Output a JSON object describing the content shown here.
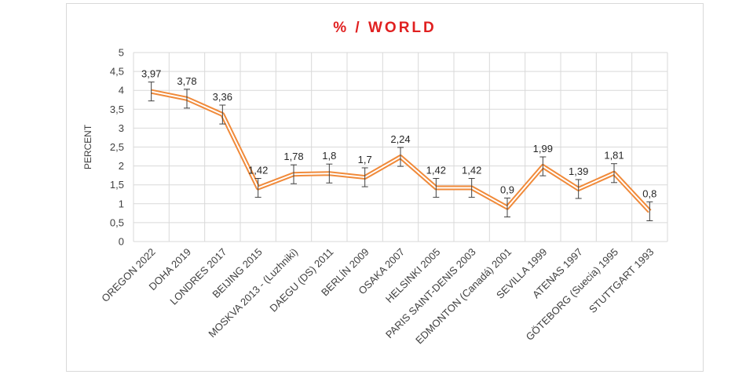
{
  "chart_data": {
    "type": "line",
    "title": "% / WORLD",
    "xlabel": "",
    "ylabel": "PERCENT",
    "ylim": [
      0,
      5
    ],
    "yticks": [
      "0",
      "0,5",
      "1",
      "1,5",
      "2",
      "2,5",
      "3",
      "3,5",
      "4",
      "4,5",
      "5"
    ],
    "grid": true,
    "legend": "none",
    "categories": [
      "OREGON 2022",
      "DOHA 2019",
      "LONDRES 2017",
      "BEIJING 2015",
      "MOSKVA 2013 - (Luzhniki)",
      "DAEGU (DS) 2011",
      "BERLÍN 2009",
      "OSAKA 2007",
      "HELSINKI 2005",
      "PARIS SAINT-DENIS 2003",
      "EDMONTON (Canadá) 2001",
      "SEVILLA 1999",
      "ATENAS 1997",
      "GÖTEBORG (Suecia) 1995",
      "STUTTGART 1993"
    ],
    "values": [
      3.97,
      3.78,
      3.36,
      1.42,
      1.78,
      1.8,
      1.7,
      2.24,
      1.42,
      1.42,
      0.9,
      1.99,
      1.39,
      1.81,
      0.8
    ],
    "data_labels": [
      "3,97",
      "3,78",
      "3,36",
      "1,42",
      "1,78",
      "1,8",
      "1,7",
      "2,24",
      "1,42",
      "1,42",
      "0,9",
      "1,99",
      "1,39",
      "1,81",
      "0,8"
    ],
    "error_bar": 0.25,
    "colors": {
      "line": "#f08a3a",
      "line_inner": "#ffffff",
      "error_bar": "#404040",
      "grid": "#d9d9d9",
      "title": "#e02020"
    }
  }
}
